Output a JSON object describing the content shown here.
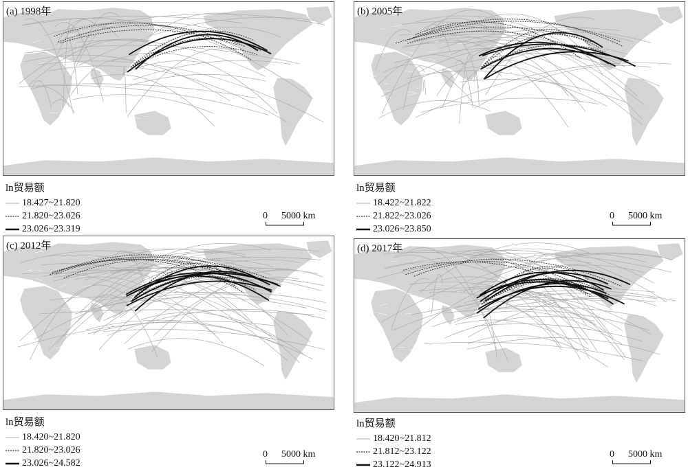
{
  "legend_title": "ln贸易额",
  "scale_zero": "0",
  "scale_label": "5000 km",
  "colors": {
    "thin": "#aaaaaa",
    "dashed": "#333333",
    "thick": "#111111",
    "land": "#d4d4d4",
    "border": "#ffffff"
  },
  "panels": [
    {
      "title": "(a) 1998年",
      "legend": [
        "18.427~21.820",
        "21.820~23.026",
        "23.026~23.319"
      ]
    },
    {
      "title": "(b) 2005年",
      "legend": [
        "18.422~21.822",
        "21.822~23.026",
        "23.026~23.850"
      ]
    },
    {
      "title": "(c) 2012年",
      "legend": [
        "18.420~21.820",
        "21.820~23.026",
        "23.026~24.582"
      ]
    },
    {
      "title": "(d) 2017年",
      "legend": [
        "18.420~21.812",
        "21.812~23.122",
        "23.122~24.913"
      ]
    }
  ]
}
